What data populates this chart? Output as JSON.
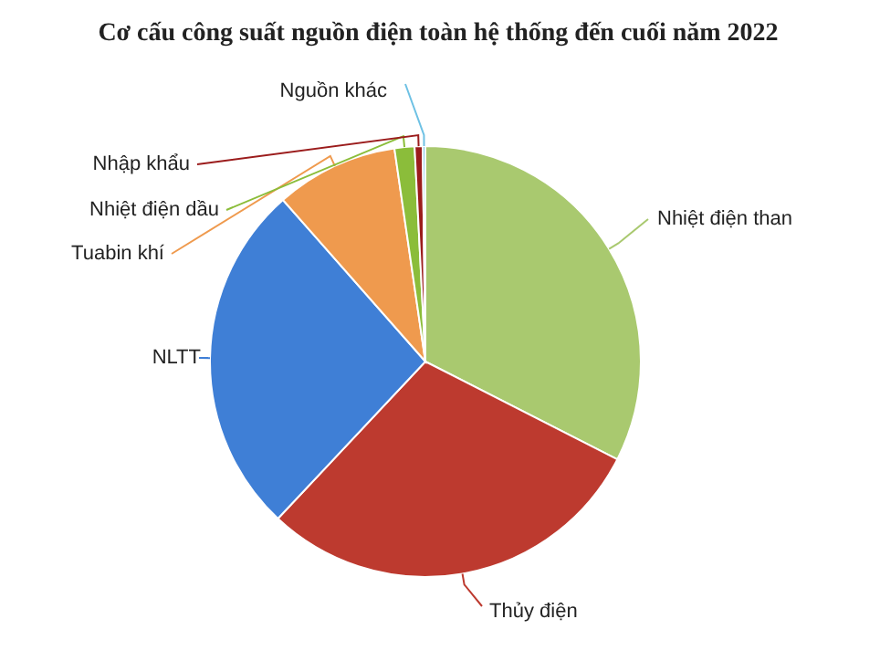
{
  "chart_data": {
    "type": "pie",
    "title": "Cơ cấu công suất nguồn điện toàn hệ thống đến cuối năm 2022",
    "categories": [
      "Nhiệt điện than",
      "Thủy điện",
      "NLTT",
      "Tuabin khí",
      "Nhiệt điện dầu",
      "Nhập khẩu",
      "Nguồn khác"
    ],
    "values": [
      32.5,
      29.5,
      26.5,
      9.2,
      1.5,
      0.6,
      0.2
    ],
    "colors": [
      "#a9c96f",
      "#bd3a2f",
      "#3f7fd6",
      "#ef9a4e",
      "#8bbd3a",
      "#9b1c1c",
      "#6ec1e4"
    ]
  }
}
